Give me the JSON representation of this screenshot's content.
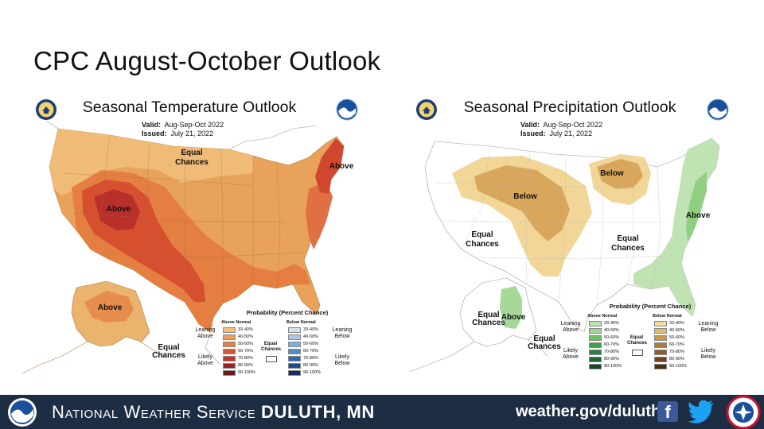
{
  "slide_title": "CPC August-October Outlook",
  "temperature": {
    "title": "Seasonal Temperature Outlook",
    "valid_label": "Valid:",
    "valid_value": "Aug-Sep-Oct 2022",
    "issued_label": "Issued:",
    "issued_value": "July 21, 2022",
    "map_labels": {
      "above_west": "Above",
      "above_northeast": "Above",
      "above_alaska": "Above",
      "equal_chances_1": "Equal",
      "equal_chances_2": "Chances",
      "eq_ak_1": "Equal",
      "eq_ak_2": "Chances"
    }
  },
  "precipitation": {
    "title": "Seasonal Precipitation Outlook",
    "valid_label": "Valid:",
    "valid_value": "Aug-Sep-Oct 2022",
    "issued_label": "Issued:",
    "issued_value": "July 21, 2022",
    "map_labels": {
      "below_west": "Below",
      "below_greatlakes": "Below",
      "above_east": "Above",
      "above_alaska": "Above",
      "equal_west_1": "Equal",
      "equal_west_2": "Chances",
      "equal_central_1": "Equal",
      "equal_central_2": "Chances",
      "equal_ak_1": "Equal",
      "equal_ak_2": "Chances",
      "equal_ak2_1": "Equal",
      "equal_ak2_2": "Chances"
    }
  },
  "legend": {
    "title": "Probability (Percent Chance)",
    "temp_above_head": "Above Normal",
    "temp_below_head": "Below Normal",
    "precip_above_head": "Above Normal",
    "precip_below_head": "Below Normal",
    "ranges": [
      "33-40%",
      "40-50%",
      "50-60%",
      "60-70%",
      "70-80%",
      "80-90%",
      "90-100%"
    ],
    "leaning_above": "Leaning Above",
    "likely_above": "Likely Above",
    "leaning_below": "Leaning Below",
    "likely_below": "Likely Below",
    "equal_chances": "Equal Chances",
    "colors": {
      "temp_above": [
        "#f2c07a",
        "#ec9f58",
        "#e47e40",
        "#d9552f",
        "#c0352a",
        "#962424",
        "#6b1a1a"
      ],
      "temp_below": [
        "#cfe0f0",
        "#a9c9e6",
        "#7fb0db",
        "#4f8fc9",
        "#2b6cb0",
        "#1c4b8c",
        "#1a2a5e"
      ],
      "precip_above": [
        "#bfe3b3",
        "#9fd38e",
        "#6fbf63",
        "#3fa24a",
        "#2a8040",
        "#1f6434",
        "#154a26"
      ],
      "precip_below": [
        "#f2dc9c",
        "#e2b86a",
        "#c9964a",
        "#b07a3a",
        "#8e5e2c",
        "#6c4420",
        "#4a2e16"
      ]
    }
  },
  "footer": {
    "nws_prefix": "National Weather Service",
    "office": "Duluth, MN",
    "url": "weather.gov/duluth"
  }
}
